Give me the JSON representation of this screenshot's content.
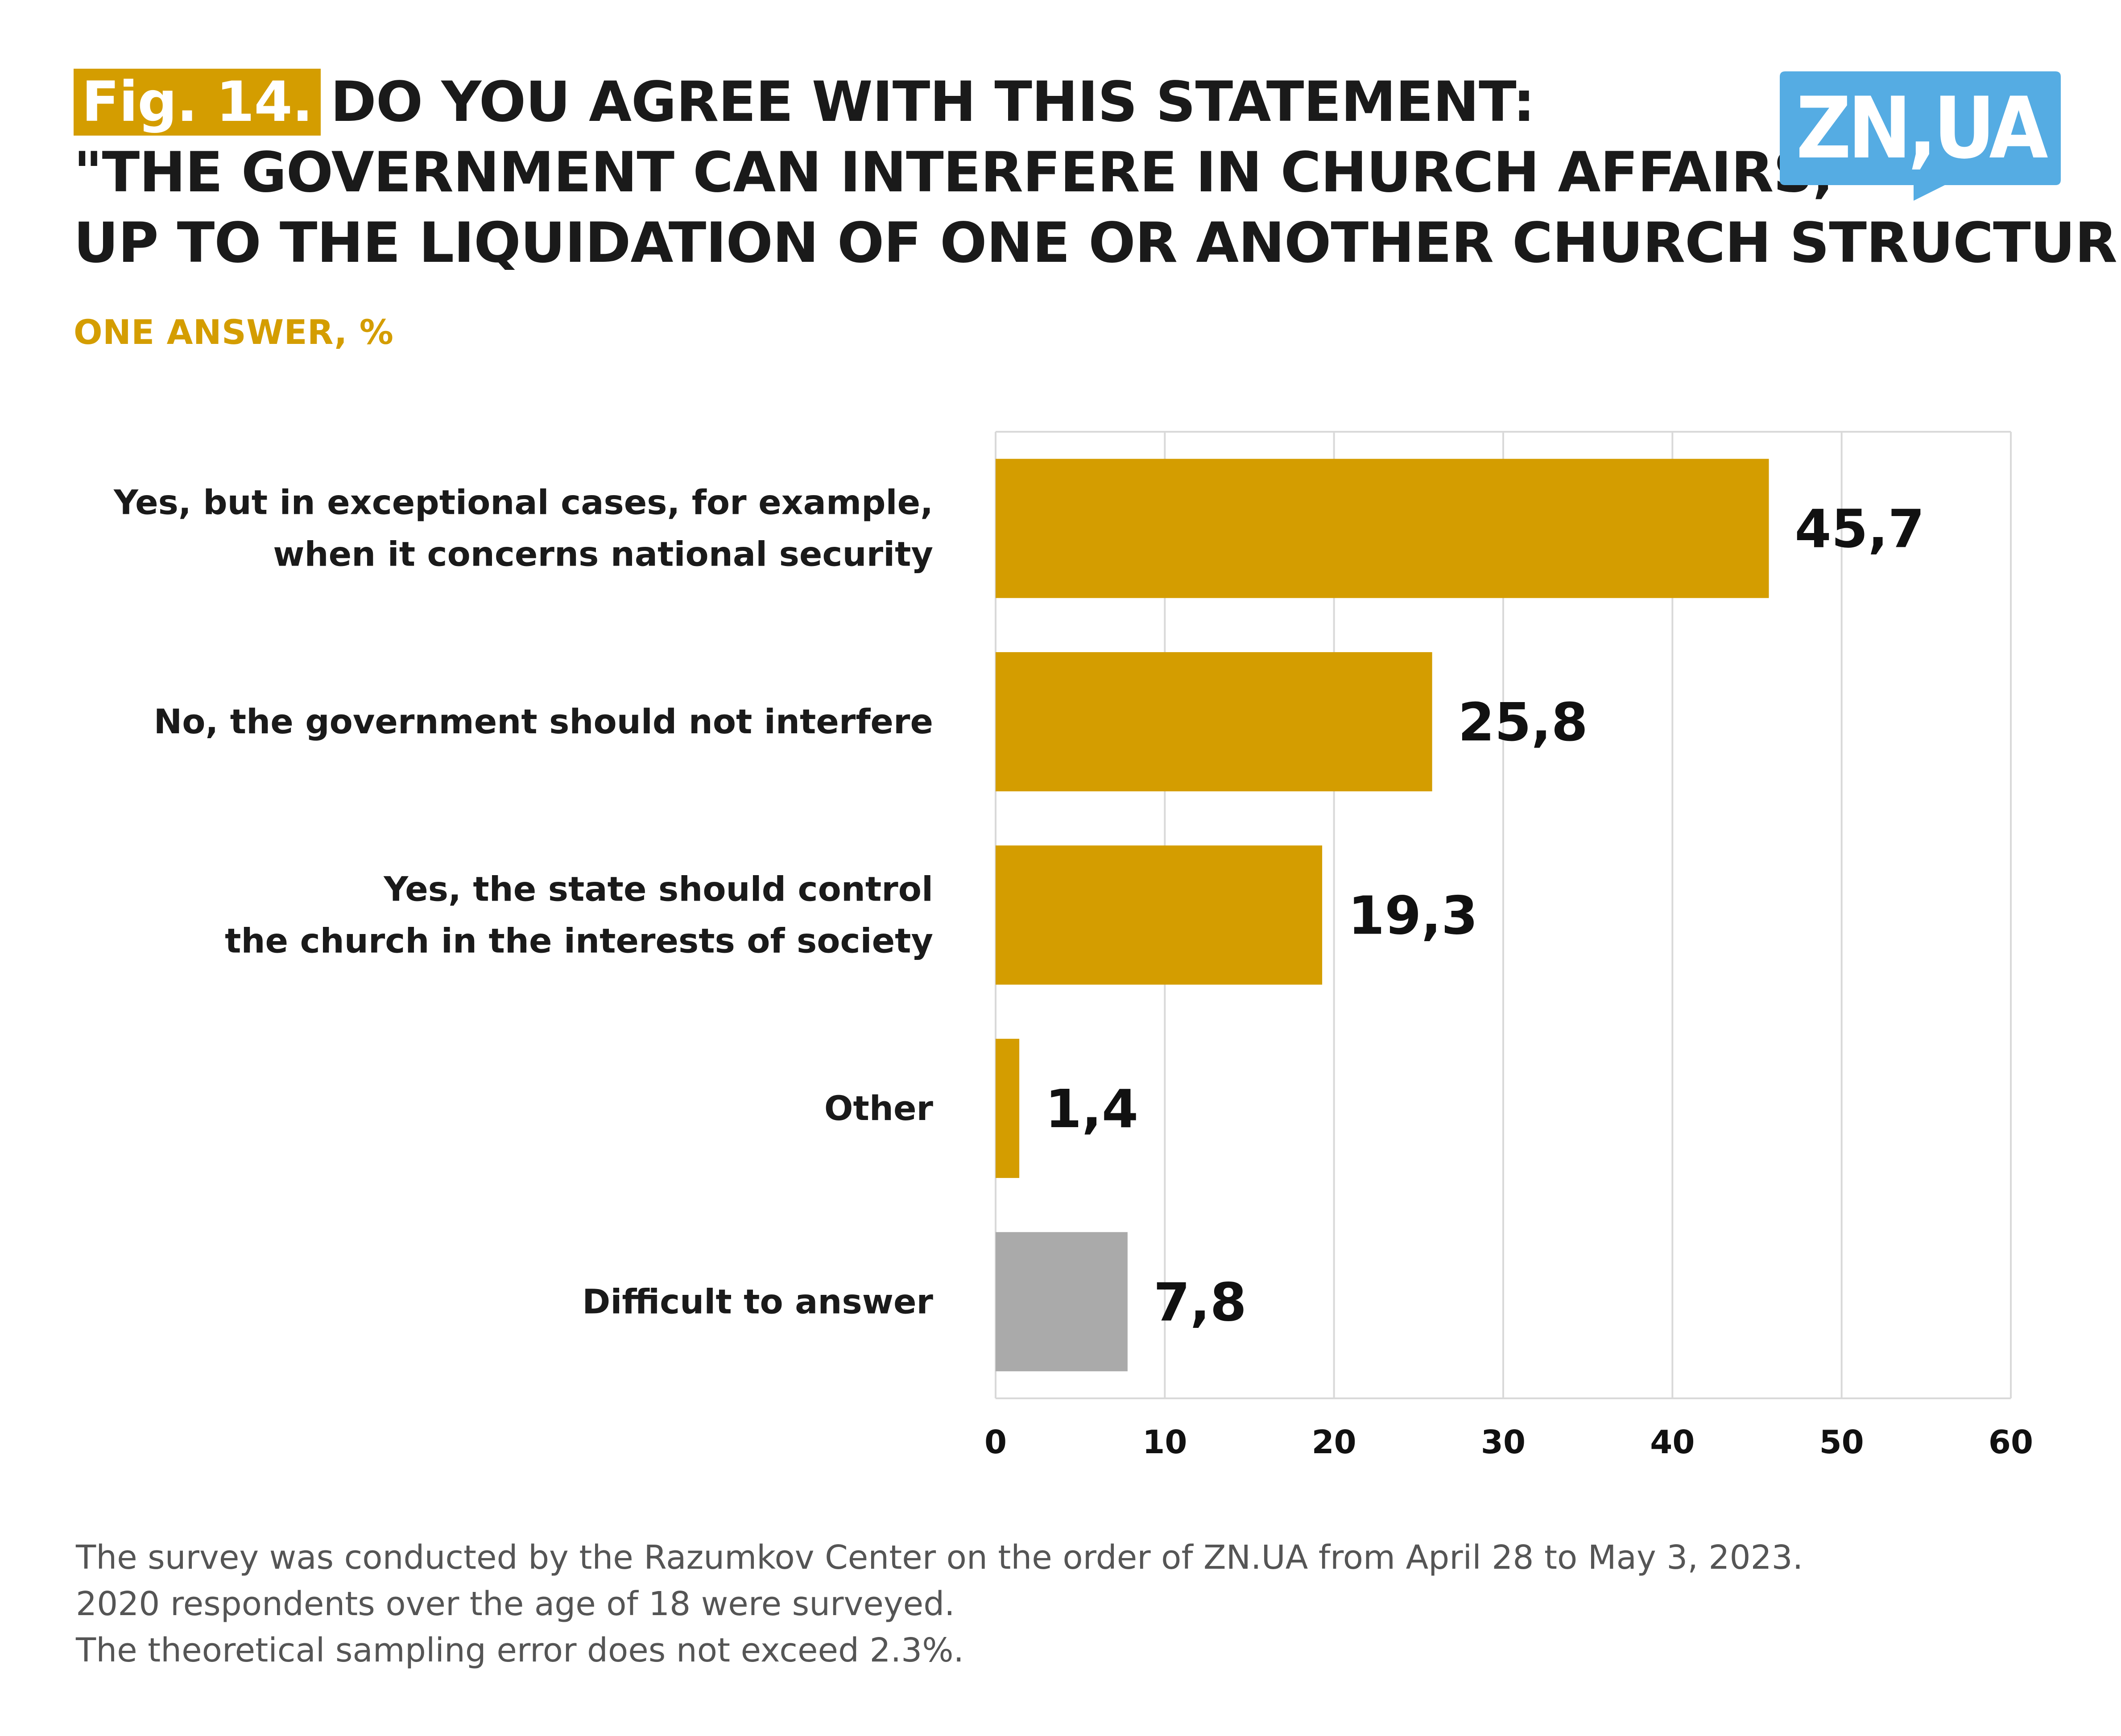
{
  "header": {
    "fig_label": "Fig. 14.",
    "title_line1": "DO YOU AGREE WITH THIS STATEMENT:",
    "title_line2": "\"THE GOVERNMENT CAN INTERFERE IN CHURCH AFFAIRS,",
    "title_line3": "UP TO THE LIQUIDATION OF ONE OR ANOTHER CHURCH STRUCTURE\"?",
    "subtitle": "ONE ANSWER, %"
  },
  "logo": {
    "text": "ZN,UA",
    "color": "#55ace3"
  },
  "colors": {
    "accent": "#d49d00",
    "neutral_bar": "#aaaaaa",
    "grid": "#d9d9d9"
  },
  "chart_data": {
    "type": "bar",
    "orientation": "horizontal",
    "categories": [
      [
        "Yes, but in exceptional cases, for example,",
        "when it concerns national security"
      ],
      [
        "No, the government should not interfere"
      ],
      [
        "Yes, the state should control",
        "the church in the interests of society"
      ],
      [
        "Other"
      ],
      [
        "Difficult to answer"
      ]
    ],
    "values": [
      45.7,
      25.8,
      19.3,
      1.4,
      7.8
    ],
    "value_labels": [
      "45,7",
      "25,8",
      "19,3",
      "1,4",
      "7,8"
    ],
    "bar_colors": [
      "#d49d00",
      "#d49d00",
      "#d49d00",
      "#d49d00",
      "#aaaaaa"
    ],
    "xlim": [
      0,
      60
    ],
    "xticks": [
      0,
      10,
      20,
      30,
      40,
      50,
      60
    ],
    "grid": true,
    "legend": "none"
  },
  "footnote": {
    "line1": "The survey was conducted by the Razumkov Center on the order of ZN.UA from April 28 to May 3, 2023.",
    "line2": "2020 respondents over the age of 18 were surveyed.",
    "line3": "The theoretical sampling error does not exceed 2.3%."
  }
}
